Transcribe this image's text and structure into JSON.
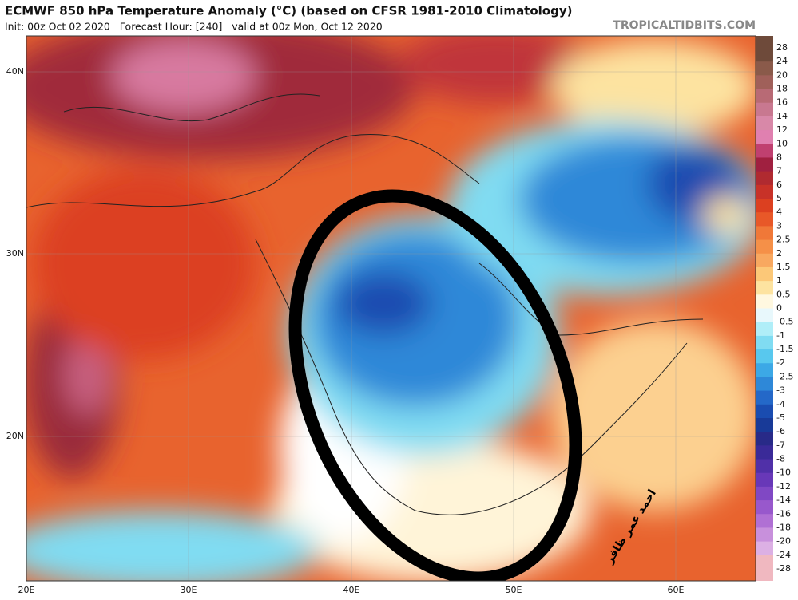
{
  "header": {
    "title": "ECMWF 850 hPa Temperature Anomaly (°C) (based on CFSR 1981-2010 Climatology)",
    "subtitle": "Init: 00z Oct 02 2020   Forecast Hour: [240]   valid at 00z Mon, Oct 12 2020",
    "brand": "TROPICALTIDBITS.COM"
  },
  "map": {
    "lat_labels": [
      "40N",
      "30N",
      "20N"
    ],
    "lon_labels": [
      "20E",
      "30E",
      "40E",
      "50E",
      "60E"
    ],
    "signature": "احمد عمر ظافر"
  },
  "colorbar": {
    "ticks": [
      28,
      24,
      20,
      18,
      16,
      14,
      12,
      10,
      8,
      7,
      6,
      5,
      4,
      3,
      2.5,
      2,
      1.5,
      1,
      0.5,
      0,
      -0.5,
      -1,
      -1.5,
      -2,
      -2.5,
      -3,
      -4,
      -5,
      -6,
      -7,
      -8,
      -10,
      -12,
      -14,
      -16,
      -18,
      -20,
      -24,
      -28
    ],
    "colors": [
      "#6e4a3a",
      "#8a5a4a",
      "#a0605a",
      "#b86a75",
      "#c87890",
      "#d888a8",
      "#e080b0",
      "#c04070",
      "#a02040",
      "#b02a30",
      "#c83228",
      "#dc4020",
      "#e85828",
      "#f07838",
      "#f59048",
      "#f8a860",
      "#fcc878",
      "#fde3a0",
      "#fff8e0",
      "#e8f8fc",
      "#b0eef8",
      "#80dcf2",
      "#58c8ee",
      "#3ca8e6",
      "#2e88d8",
      "#2468c8",
      "#1a4cb0",
      "#183a98",
      "#282a88",
      "#3a2a98",
      "#5030a8",
      "#6838b8",
      "#8048c4",
      "#9858cc",
      "#b070d4",
      "#c890dc",
      "#dcb0e4",
      "#f0b8c0"
    ]
  }
}
